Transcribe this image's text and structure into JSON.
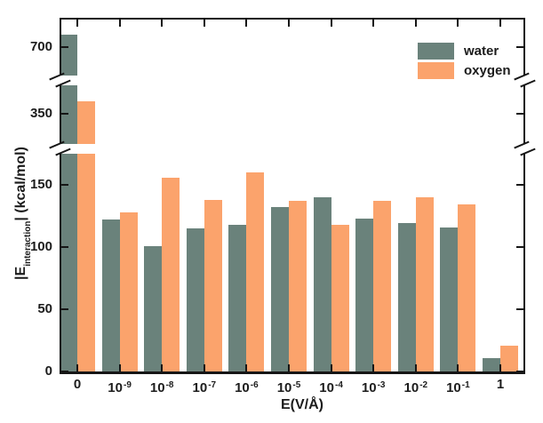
{
  "figure": {
    "background": "#ffffff",
    "axis_color": "#161616",
    "text_color": "#1c1c1c"
  },
  "legend": {
    "items": [
      {
        "label": "water",
        "color": "#6A827B"
      },
      {
        "label": "oxygen",
        "color": "#FBA36C"
      }
    ]
  },
  "axes": {
    "x_title": "E(V/Å)",
    "y_title_prefix": "|E",
    "y_title_sub": "interaction",
    "y_title_suffix": "| (kcal/mol)",
    "y_tick_labels": [
      "700",
      "350",
      "150",
      "100",
      "50",
      "0"
    ]
  },
  "chart_data": {
    "type": "bar",
    "title": "",
    "xlabel": "E(V/Å)",
    "ylabel": "|E_interaction| (kcal/mol)",
    "categories": [
      "0",
      "10^-9",
      "10^-8",
      "10^-7",
      "10^-6",
      "10^-5",
      "10^-4",
      "10^-3",
      "10^-2",
      "10^-1",
      "1"
    ],
    "series": [
      {
        "name": "water",
        "color": "#6A827B",
        "values": [
          710,
          122,
          101,
          115,
          118,
          132,
          140,
          123,
          119,
          116,
          11
        ]
      },
      {
        "name": "oxygen",
        "color": "#FBA36C",
        "values": [
          360,
          128,
          156,
          138,
          160,
          137,
          118,
          137,
          140,
          134,
          21
        ]
      }
    ],
    "y_axis": {
      "broken": true,
      "visible_segments": [
        [
          0,
          176
        ],
        [
          326,
          373
        ],
        [
          678,
          724
        ]
      ],
      "ticks": [
        0,
        50,
        100,
        150,
        350,
        700
      ]
    },
    "x_axis": {
      "scale_note": "categorical: 0 then powers of ten up to 1"
    },
    "legend_position": "top-right-inside",
    "grid": false
  }
}
